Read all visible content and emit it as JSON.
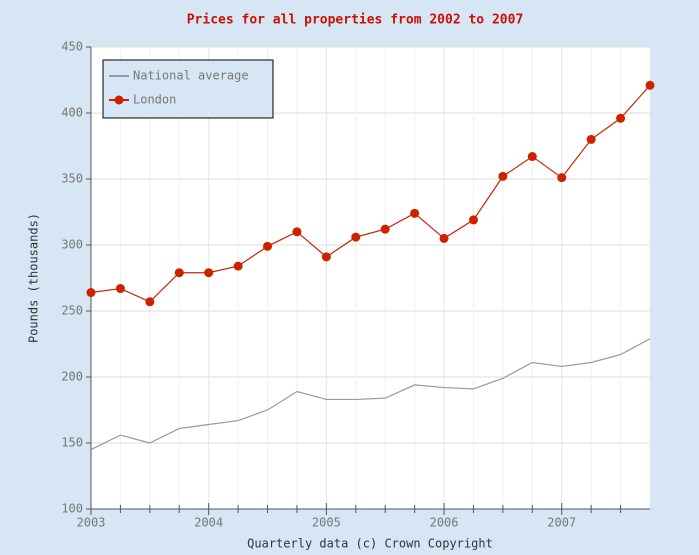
{
  "chart_data": {
    "type": "line",
    "title": "Prices for all properties from 2002 to 2007",
    "xlabel": "Quarterly data (c) Crown Copyright",
    "ylabel": "Pounds (thousands)",
    "x": [
      2003,
      2003.25,
      2003.5,
      2003.75,
      2004,
      2004.25,
      2004.5,
      2004.75,
      2005,
      2005.25,
      2005.5,
      2005.75,
      2006,
      2006.25,
      2006.5,
      2006.75,
      2007,
      2007.25,
      2007.5,
      2007.75
    ],
    "series": [
      {
        "name": "National average",
        "color": "#999999",
        "marker": false,
        "values": [
          145,
          156,
          150,
          161,
          164,
          167,
          175,
          189,
          183,
          183,
          184,
          194,
          192,
          191,
          199,
          211,
          208,
          211,
          217,
          229
        ]
      },
      {
        "name": "London",
        "color": "#cc2200",
        "marker": true,
        "values": [
          264,
          267,
          257,
          279,
          279,
          284,
          299,
          310,
          291,
          306,
          312,
          324,
          305,
          319,
          352,
          367,
          351,
          380,
          396,
          421
        ]
      }
    ],
    "xlim": [
      2003,
      2007.75
    ],
    "xticks": [
      2003,
      2004,
      2005,
      2006,
      2007
    ],
    "xminorticks": [
      2003.25,
      2003.5,
      2003.75,
      2004.25,
      2004.5,
      2004.75,
      2005.25,
      2005.5,
      2005.75,
      2006.25,
      2006.5,
      2006.75,
      2007.25,
      2007.5
    ],
    "ylim": [
      100,
      450
    ],
    "yticks": [
      100,
      150,
      200,
      250,
      300,
      350,
      400,
      450
    ],
    "grid": true,
    "legend": "upper left"
  }
}
